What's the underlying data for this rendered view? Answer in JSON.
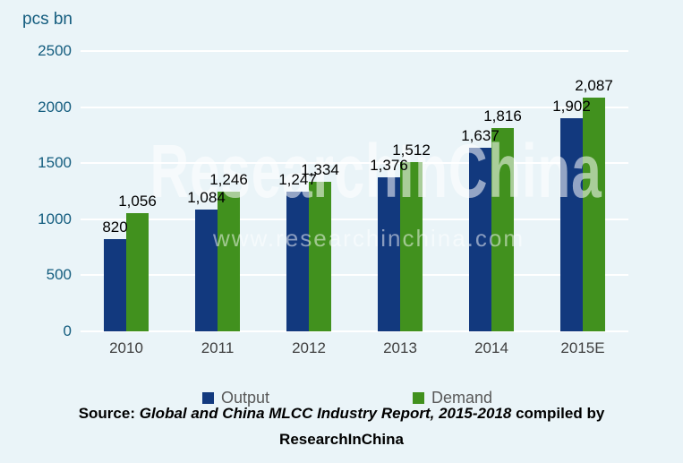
{
  "chart_data": {
    "type": "bar",
    "unit_label": "pcs bn",
    "categories": [
      "2010",
      "2011",
      "2012",
      "2013",
      "2014",
      "2015E"
    ],
    "series": [
      {
        "name": "Output",
        "color": "#12397E",
        "values": [
          820,
          1084,
          1247,
          1376,
          1637,
          1902
        ],
        "labels": [
          "820",
          "1,084",
          "1,247",
          "1,376",
          "1,637",
          "1,902"
        ]
      },
      {
        "name": "Demand",
        "color": "#41911E",
        "values": [
          1056,
          1246,
          1334,
          1512,
          1816,
          2087
        ],
        "labels": [
          "1,056",
          "1,246",
          "1,334",
          "1,512",
          "1,816",
          "2,087"
        ]
      }
    ],
    "y_ticks": [
      0,
      500,
      1000,
      1500,
      2000,
      2500
    ],
    "ylim": [
      0,
      2500
    ],
    "grid": "horizontal-white-gridlines",
    "legend_position": "bottom"
  },
  "legend": {
    "items": [
      {
        "label": "Output",
        "color": "#12397E"
      },
      {
        "label": "Demand",
        "color": "#41911E"
      }
    ]
  },
  "watermark": {
    "line1": "ResearchInChina",
    "line2": "www.researchinchina.com"
  },
  "source": {
    "prefix": "Source: ",
    "title_italic": "Global and China MLCC Industry Report, 2015-2018",
    "suffix": " compiled by",
    "line2": "ResearchInChina"
  },
  "colors": {
    "background": "#EAF4F8",
    "output_bar": "#12397E",
    "demand_bar": "#41911E",
    "axis_text": "#135C7E",
    "category_text": "#3F3F3F",
    "legend_text": "#595959",
    "gridline": "#FFFFFF",
    "data_label": "#000000"
  }
}
